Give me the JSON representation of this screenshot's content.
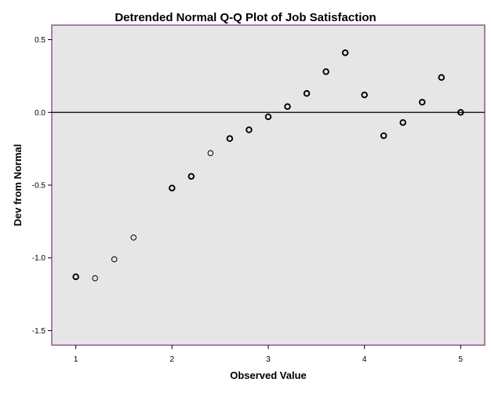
{
  "chart_data": {
    "type": "scatter",
    "title": "Detrended Normal Q-Q Plot of Job Satisfaction",
    "xlabel": "Observed Value",
    "ylabel": "Dev from Normal",
    "xlim": [
      0.75,
      5.25
    ],
    "ylim": [
      -1.6,
      0.6
    ],
    "xticks": [
      1,
      2,
      3,
      4,
      5
    ],
    "yticks": [
      0.5,
      0.0,
      -0.5,
      -1.0,
      -1.5
    ],
    "xtick_labels": [
      "1",
      "2",
      "3",
      "4",
      "5"
    ],
    "ytick_labels": [
      "0.5",
      "0.0",
      "-0.5",
      "-1.0",
      "-1.5"
    ],
    "reference_line_y": 0,
    "grid": false,
    "colors": {
      "plot_background": "#e6e6e6",
      "frame": "#8b5a8b",
      "marker": "#000000"
    },
    "points": [
      {
        "x": 1.0,
        "y": -1.13,
        "bold": true
      },
      {
        "x": 1.2,
        "y": -1.14,
        "bold": false
      },
      {
        "x": 1.4,
        "y": -1.01,
        "bold": false
      },
      {
        "x": 1.6,
        "y": -0.86,
        "bold": false
      },
      {
        "x": 2.0,
        "y": -0.52,
        "bold": true
      },
      {
        "x": 2.2,
        "y": -0.44,
        "bold": true
      },
      {
        "x": 2.4,
        "y": -0.28,
        "bold": false
      },
      {
        "x": 2.6,
        "y": -0.18,
        "bold": true
      },
      {
        "x": 2.8,
        "y": -0.12,
        "bold": true
      },
      {
        "x": 3.0,
        "y": -0.03,
        "bold": true
      },
      {
        "x": 3.2,
        "y": 0.04,
        "bold": true
      },
      {
        "x": 3.4,
        "y": 0.13,
        "bold": true
      },
      {
        "x": 3.6,
        "y": 0.28,
        "bold": true
      },
      {
        "x": 3.8,
        "y": 0.41,
        "bold": true
      },
      {
        "x": 4.0,
        "y": 0.12,
        "bold": true
      },
      {
        "x": 4.2,
        "y": -0.16,
        "bold": true
      },
      {
        "x": 4.4,
        "y": -0.07,
        "bold": true
      },
      {
        "x": 4.6,
        "y": 0.07,
        "bold": true
      },
      {
        "x": 4.8,
        "y": 0.24,
        "bold": true
      },
      {
        "x": 5.0,
        "y": 0.0,
        "bold": true
      }
    ]
  }
}
